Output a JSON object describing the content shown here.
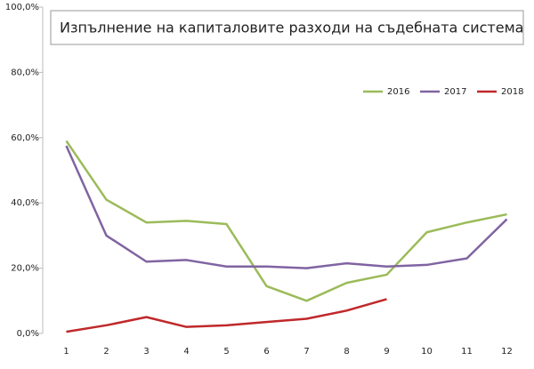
{
  "chart_data": {
    "type": "line",
    "title": "Изпълнение на капиталовите разходи на съдебната система",
    "categories": [
      "1",
      "2",
      "3",
      "4",
      "5",
      "6",
      "7",
      "8",
      "9",
      "10",
      "11",
      "12"
    ],
    "series": [
      {
        "name": "2016",
        "color": "#9bbb59",
        "values": [
          59,
          41,
          34,
          34.5,
          33.5,
          14.5,
          10,
          15.5,
          18,
          31,
          34,
          36.5
        ]
      },
      {
        "name": "2017",
        "color": "#8064a2",
        "values": [
          57.5,
          30,
          22,
          22.5,
          20.5,
          20.5,
          20,
          21.5,
          20.5,
          21,
          23,
          35
        ]
      },
      {
        "name": "2018",
        "color": "#c0282a",
        "values": [
          0.5,
          2.5,
          5,
          2,
          2.5,
          3.5,
          4.5,
          7,
          10.5,
          null,
          null,
          null
        ]
      }
    ],
    "ylim": [
      0,
      100
    ],
    "yticks": [
      {
        "value": 0,
        "label": "0,0%"
      },
      {
        "value": 20,
        "label": "20,0%"
      },
      {
        "value": 40,
        "label": "40,0%"
      },
      {
        "value": 60,
        "label": "60,0%"
      },
      {
        "value": 80,
        "label": "80,0%"
      },
      {
        "value": 100,
        "label": "100,0%"
      }
    ],
    "legend": "top-right"
  }
}
